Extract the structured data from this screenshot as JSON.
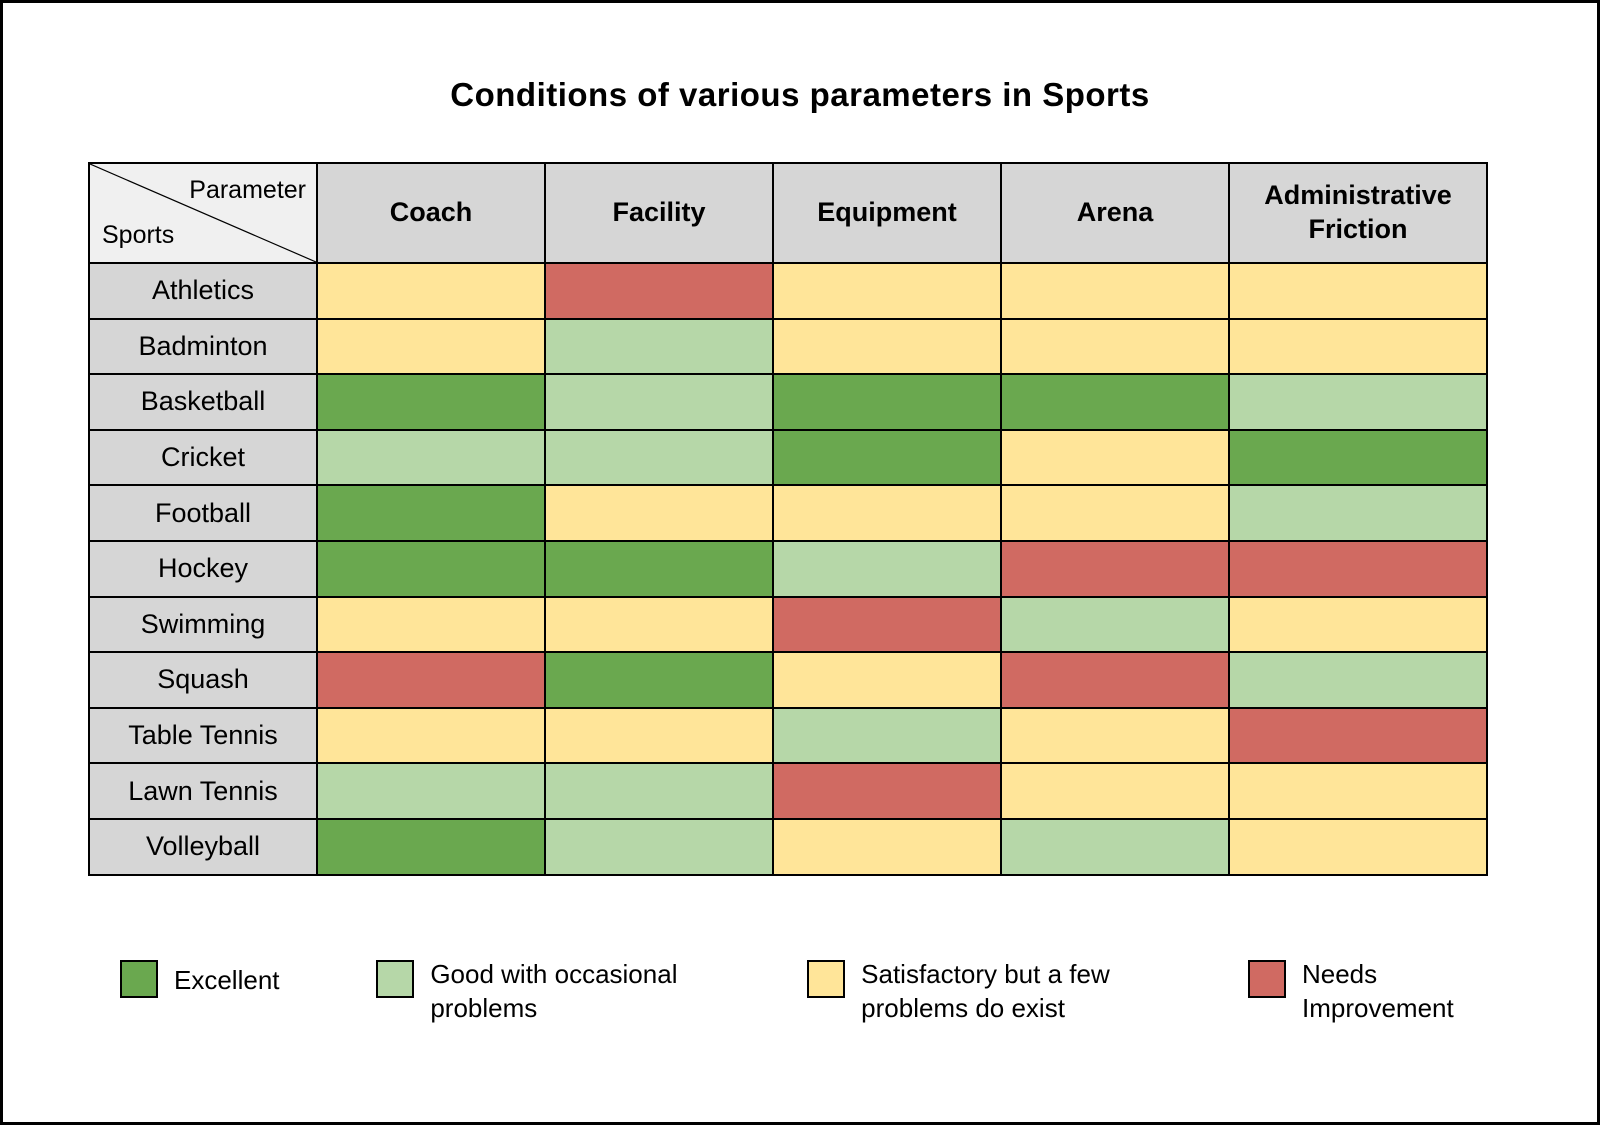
{
  "title": "Conditions of various parameters in Sports",
  "corner": {
    "top_label": "Parameter",
    "bottom_label": "Sports"
  },
  "colors": {
    "excellent": "#6aa84f",
    "good": "#b6d7a8",
    "satisfactory": "#ffe599",
    "needs_improvement": "#d06a62",
    "header_gray": "#d6d6d6",
    "border": "#000000"
  },
  "legend": [
    {
      "key": "excellent",
      "label": "Excellent"
    },
    {
      "key": "good",
      "label": "Good with occasional problems"
    },
    {
      "key": "satisfactory",
      "label": "Satisfactory but a few problems do exist"
    },
    {
      "key": "needs_improvement",
      "label": "Needs Improvement"
    }
  ],
  "chart_data": {
    "type": "heatmap",
    "title": "Conditions of various parameters in Sports",
    "legend_position": "bottom",
    "columns": [
      "Coach",
      "Facility",
      "Equipment",
      "Arena",
      "Administrative Friction"
    ],
    "rows": [
      "Athletics",
      "Badminton",
      "Basketball",
      "Cricket",
      "Football",
      "Hockey",
      "Swimming",
      "Squash",
      "Table Tennis",
      "Lawn Tennis",
      "Volleyball"
    ],
    "values": [
      [
        "satisfactory",
        "needs_improvement",
        "satisfactory",
        "satisfactory",
        "satisfactory"
      ],
      [
        "satisfactory",
        "good",
        "satisfactory",
        "satisfactory",
        "satisfactory"
      ],
      [
        "excellent",
        "good",
        "excellent",
        "excellent",
        "good"
      ],
      [
        "good",
        "good",
        "excellent",
        "satisfactory",
        "excellent"
      ],
      [
        "excellent",
        "satisfactory",
        "satisfactory",
        "satisfactory",
        "good"
      ],
      [
        "excellent",
        "excellent",
        "good",
        "needs_improvement",
        "needs_improvement"
      ],
      [
        "satisfactory",
        "satisfactory",
        "needs_improvement",
        "good",
        "satisfactory"
      ],
      [
        "needs_improvement",
        "excellent",
        "satisfactory",
        "needs_improvement",
        "good"
      ],
      [
        "satisfactory",
        "satisfactory",
        "good",
        "satisfactory",
        "needs_improvement"
      ],
      [
        "good",
        "good",
        "needs_improvement",
        "satisfactory",
        "satisfactory"
      ],
      [
        "excellent",
        "good",
        "satisfactory",
        "good",
        "satisfactory"
      ]
    ],
    "value_labels": {
      "excellent": "Excellent",
      "good": "Good with occasional problems",
      "satisfactory": "Satisfactory but a few problems do exist",
      "needs_improvement": "Needs Improvement"
    }
  }
}
